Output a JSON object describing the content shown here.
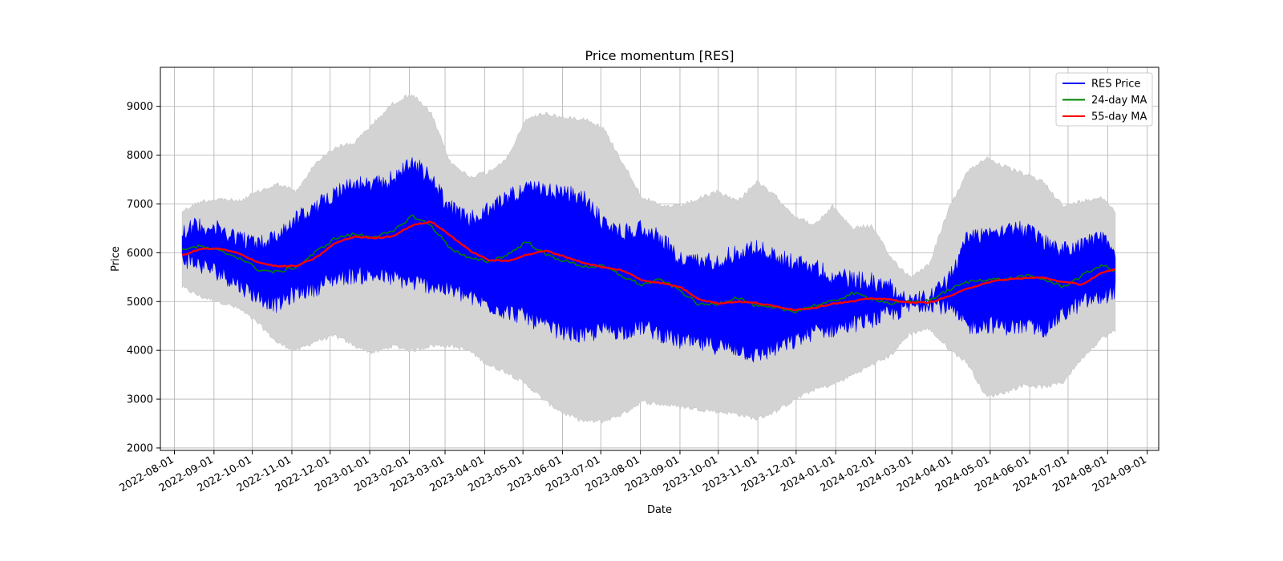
{
  "chart_data": {
    "type": "line",
    "title": "Price momentum [RES]",
    "xlabel": "Date",
    "ylabel": "Price",
    "xlim": [
      "2022-07-21",
      "2024-09-10"
    ],
    "ylim": [
      1950,
      9800
    ],
    "grid": true,
    "legend_position": "top-right",
    "x_ticks": [
      "2022-08-01",
      "2022-09-01",
      "2022-10-01",
      "2022-11-01",
      "2022-12-01",
      "2023-01-01",
      "2023-02-01",
      "2023-03-01",
      "2023-04-01",
      "2023-05-01",
      "2023-06-01",
      "2023-07-01",
      "2023-08-01",
      "2023-09-01",
      "2023-10-01",
      "2023-11-01",
      "2023-12-01",
      "2024-01-01",
      "2024-02-01",
      "2024-03-01",
      "2024-04-01",
      "2024-05-01",
      "2024-06-01",
      "2024-07-01",
      "2024-08-01",
      "2024-09-01"
    ],
    "y_ticks": [
      2000,
      3000,
      4000,
      5000,
      6000,
      7000,
      8000,
      9000
    ],
    "x": [
      "2022-08-07",
      "2022-08-22",
      "2022-09-06",
      "2022-09-21",
      "2022-10-06",
      "2022-10-21",
      "2022-11-05",
      "2022-11-20",
      "2022-12-05",
      "2022-12-20",
      "2023-01-04",
      "2023-01-19",
      "2023-02-03",
      "2023-02-18",
      "2023-03-05",
      "2023-03-20",
      "2023-04-04",
      "2023-04-19",
      "2023-05-04",
      "2023-05-19",
      "2023-06-03",
      "2023-06-18",
      "2023-07-03",
      "2023-07-18",
      "2023-08-02",
      "2023-08-17",
      "2023-09-01",
      "2023-09-16",
      "2023-10-01",
      "2023-10-16",
      "2023-10-31",
      "2023-11-15",
      "2023-11-30",
      "2023-12-15",
      "2023-12-30",
      "2024-01-14",
      "2024-01-29",
      "2024-02-13",
      "2024-02-28",
      "2024-03-14",
      "2024-03-29",
      "2024-04-13",
      "2024-04-28",
      "2024-05-13",
      "2024-05-28",
      "2024-06-12",
      "2024-06-27",
      "2024-07-12",
      "2024-07-27",
      "2024-08-07"
    ],
    "series": [
      {
        "name": "RES Price",
        "color": "#0000ff",
        "style": "high-low-band",
        "low": [
          5700,
          5550,
          5400,
          5150,
          4900,
          4750,
          5000,
          5100,
          5300,
          5350,
          5350,
          5300,
          5200,
          5150,
          5050,
          4900,
          4750,
          4600,
          4500,
          4300,
          4200,
          4100,
          4250,
          4200,
          4300,
          4150,
          4000,
          3950,
          3900,
          3850,
          3700,
          3850,
          4000,
          4200,
          4250,
          4350,
          4450,
          4550,
          4700,
          4800,
          4700,
          4300,
          4350,
          4300,
          4300,
          4250,
          4550,
          4800,
          4900,
          5050
        ],
        "high": [
          6650,
          6750,
          6650,
          6500,
          6350,
          6550,
          6900,
          7100,
          7450,
          7600,
          7550,
          7700,
          8050,
          7700,
          7100,
          6850,
          7050,
          7350,
          7500,
          7450,
          7400,
          7300,
          6800,
          6600,
          6700,
          6500,
          6050,
          6000,
          6050,
          6200,
          6300,
          6100,
          6000,
          5900,
          5700,
          5650,
          5600,
          5500,
          5200,
          5250,
          5600,
          6500,
          6600,
          6700,
          6650,
          6400,
          6250,
          6350,
          6500,
          6150
        ],
        "values": [
          6050,
          6050,
          6000,
          5850,
          5700,
          5750,
          5900,
          6150,
          6350,
          6300,
          6300,
          6450,
          6650,
          6450,
          6100,
          5900,
          5850,
          5950,
          6100,
          6000,
          5900,
          5750,
          5650,
          5500,
          5450,
          5350,
          5150,
          5000,
          4950,
          4900,
          4850,
          4800,
          4850,
          4950,
          5000,
          5050,
          5050,
          4950,
          4950,
          5000,
          5150,
          5350,
          5450,
          5450,
          5500,
          5450,
          5300,
          5450,
          5650,
          5650
        ]
      },
      {
        "name": "24-day MA",
        "color": "#008000",
        "values": [
          6080,
          6130,
          6030,
          5900,
          5650,
          5600,
          5720,
          6020,
          6300,
          6380,
          6330,
          6420,
          6760,
          6560,
          6100,
          5880,
          5820,
          5960,
          6230,
          5960,
          5830,
          5720,
          5720,
          5520,
          5340,
          5450,
          5230,
          4930,
          4960,
          5090,
          4900,
          4860,
          4800,
          4920,
          5000,
          5170,
          5070,
          4960,
          4990,
          5020,
          5230,
          5400,
          5460,
          5450,
          5530,
          5460,
          5300,
          5530,
          5750,
          5620
        ]
      },
      {
        "name": "55-day MA",
        "color": "#ff0000",
        "values": [
          5950,
          6080,
          6080,
          5980,
          5800,
          5720,
          5730,
          5900,
          6200,
          6330,
          6300,
          6340,
          6560,
          6640,
          6360,
          6050,
          5850,
          5830,
          5960,
          6040,
          5920,
          5790,
          5700,
          5640,
          5440,
          5380,
          5300,
          5050,
          4960,
          5000,
          4970,
          4900,
          4830,
          4870,
          4960,
          5000,
          5070,
          5040,
          4980,
          4980,
          5100,
          5260,
          5390,
          5450,
          5480,
          5490,
          5400,
          5350,
          5580,
          5660
        ]
      },
      {
        "name": "",
        "color": "#d3d3d3",
        "style": "shaded-band",
        "low": [
          5250,
          5050,
          4950,
          4800,
          4500,
          4100,
          3950,
          4150,
          4250,
          4050,
          3900,
          4050,
          3950,
          4050,
          4050,
          3950,
          3650,
          3500,
          3250,
          2900,
          2650,
          2500,
          2500,
          2650,
          2900,
          2850,
          2800,
          2750,
          2700,
          2650,
          2550,
          2700,
          2950,
          3150,
          3250,
          3450,
          3650,
          3850,
          4300,
          4400,
          4000,
          3700,
          3000,
          3100,
          3250,
          3200,
          3300,
          3800,
          4200,
          4350
        ],
        "high": [
          6900,
          7100,
          7150,
          7100,
          7300,
          7450,
          7300,
          7900,
          8200,
          8300,
          8700,
          9100,
          9300,
          8900,
          7900,
          7600,
          7700,
          8000,
          8800,
          8900,
          8800,
          8800,
          8600,
          7900,
          7200,
          7000,
          7000,
          7150,
          7300,
          7100,
          7500,
          7200,
          6800,
          6600,
          7000,
          6550,
          6600,
          5950,
          5550,
          5800,
          6900,
          7700,
          8000,
          7800,
          7650,
          7500,
          7000,
          7100,
          7200,
          6900
        ]
      }
    ],
    "legend": [
      "RES Price",
      "24-day MA",
      "55-day MA"
    ]
  }
}
